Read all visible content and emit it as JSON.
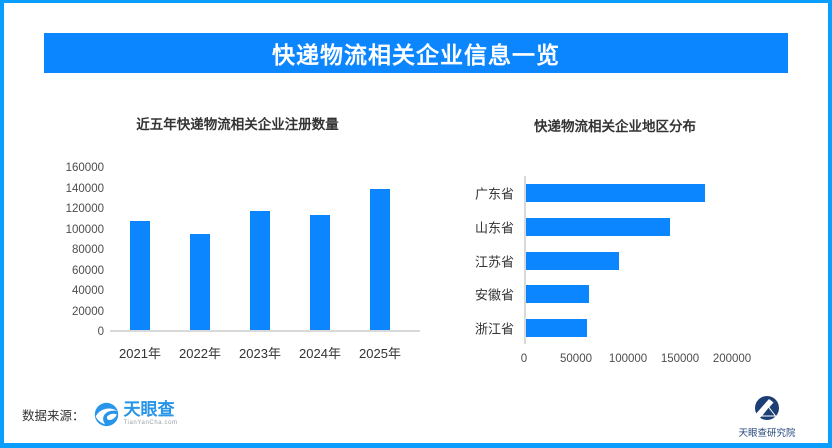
{
  "page": {
    "title": "快递物流相关企业信息一览",
    "source_label": "数据来源：",
    "brand": {
      "logo_text": "天眼查",
      "logo_subtext": "TianYanCha.com",
      "research_label": "天眼查研究院"
    },
    "colors": {
      "accent": "#0b86ff",
      "page_border": "#0a9eff",
      "banner_text": "#ffffff",
      "title_text": "#333333",
      "tick_text": "#4d4d4d",
      "axis_line": "#d9d9d9",
      "tianyancha_blue": "#2795e9",
      "research_navy": "#1d3e74"
    }
  },
  "chart_data": [
    {
      "type": "bar",
      "orientation": "vertical",
      "title": "近五年快递物流相关企业注册数量",
      "categories": [
        "2021年",
        "2022年",
        "2023年",
        "2024年",
        "2025年"
      ],
      "values": [
        106000,
        94000,
        116000,
        112000,
        138000
      ],
      "ylabel": "",
      "xlabel": "",
      "ylim": [
        0,
        160000
      ],
      "yticks": [
        0,
        20000,
        40000,
        60000,
        80000,
        100000,
        120000,
        140000,
        160000
      ],
      "grid": false,
      "legend": false,
      "bar_color": "#0b86ff"
    },
    {
      "type": "bar",
      "orientation": "horizontal",
      "title": "快递物流相关企业地区分布",
      "categories": [
        "广东省",
        "山东省",
        "江苏省",
        "安徽省",
        "浙江省"
      ],
      "values": [
        172000,
        138000,
        89000,
        61000,
        59000
      ],
      "ylabel": "",
      "xlabel": "",
      "xlim": [
        0,
        250000
      ],
      "xticks": [
        0,
        50000,
        100000,
        150000,
        200000
      ],
      "grid": false,
      "legend": false,
      "bar_color": "#0b86ff"
    }
  ]
}
